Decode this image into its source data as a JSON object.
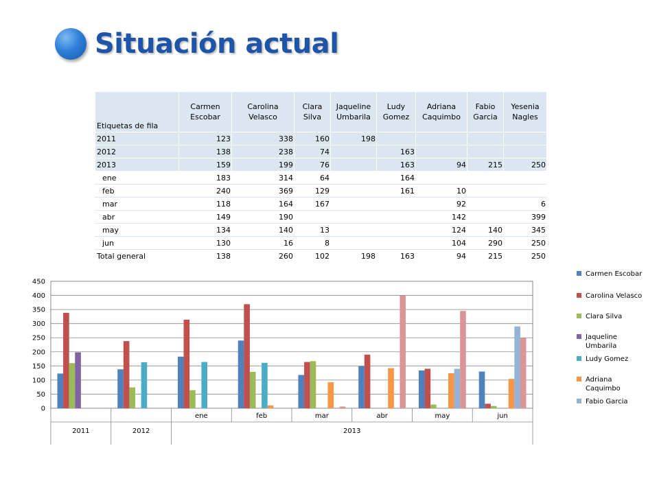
{
  "header": {
    "title": "Situación actual"
  },
  "table": {
    "corner_label": "Etiquetas de fila",
    "columns": [
      "Carmen Escobar",
      "Carolina Velasco",
      "Clara Silva",
      "Jaqueline Umbarila",
      "Ludy Gomez",
      "Adriana Caquimbo",
      "Fabio Garcia",
      "Yesenia Nagles"
    ],
    "rows": [
      {
        "label": "2011",
        "kind": "year",
        "values": [
          "123",
          "338",
          "160",
          "198",
          "",
          "",
          "",
          ""
        ]
      },
      {
        "label": "2012",
        "kind": "year",
        "values": [
          "138",
          "238",
          "74",
          "",
          "163",
          "",
          "",
          ""
        ]
      },
      {
        "label": "2013",
        "kind": "year",
        "values": [
          "159",
          "199",
          "76",
          "",
          "163",
          "94",
          "215",
          "250"
        ]
      },
      {
        "label": "ene",
        "kind": "month",
        "values": [
          "183",
          "314",
          "64",
          "",
          "164",
          "",
          "",
          ""
        ]
      },
      {
        "label": "feb",
        "kind": "month",
        "values": [
          "240",
          "369",
          "129",
          "",
          "161",
          "10",
          "",
          ""
        ]
      },
      {
        "label": "mar",
        "kind": "month",
        "values": [
          "118",
          "164",
          "167",
          "",
          "",
          "92",
          "",
          "6"
        ]
      },
      {
        "label": "abr",
        "kind": "month",
        "values": [
          "149",
          "190",
          "",
          "",
          "",
          "142",
          "",
          "399"
        ]
      },
      {
        "label": "may",
        "kind": "month",
        "values": [
          "134",
          "140",
          "13",
          "",
          "",
          "124",
          "140",
          "345"
        ]
      },
      {
        "label": "jun",
        "kind": "month",
        "values": [
          "130",
          "16",
          "8",
          "",
          "",
          "104",
          "290",
          "250"
        ]
      },
      {
        "label": "Total general",
        "kind": "total",
        "values": [
          "138",
          "260",
          "102",
          "198",
          "163",
          "94",
          "215",
          "250"
        ]
      }
    ]
  },
  "chart_data": {
    "type": "bar",
    "ylim": [
      0,
      450
    ],
    "yticks": [
      0,
      50,
      100,
      150,
      200,
      250,
      300,
      350,
      400,
      450
    ],
    "grid": true,
    "legend_position": "right",
    "categories": [
      {
        "group": "2011",
        "label": ""
      },
      {
        "group": "2012",
        "label": ""
      },
      {
        "group": "2013",
        "label": "ene"
      },
      {
        "group": "2013",
        "label": "feb"
      },
      {
        "group": "2013",
        "label": "mar"
      },
      {
        "group": "2013",
        "label": "abr"
      },
      {
        "group": "2013",
        "label": "may"
      },
      {
        "group": "2013",
        "label": "jun"
      }
    ],
    "groups": [
      "2011",
      "2012",
      "2013"
    ],
    "series": [
      {
        "name": "Carmen Escobar",
        "color": "#4f81bd",
        "values": [
          123,
          138,
          183,
          240,
          118,
          149,
          134,
          130
        ]
      },
      {
        "name": "Carolina Velasco",
        "color": "#c0504d",
        "values": [
          338,
          238,
          314,
          369,
          164,
          190,
          140,
          16
        ]
      },
      {
        "name": "Clara Silva",
        "color": "#9bbb59",
        "values": [
          160,
          74,
          64,
          129,
          167,
          null,
          13,
          8
        ]
      },
      {
        "name": "Jaqueline Umbarila",
        "color": "#8064a2",
        "values": [
          198,
          null,
          null,
          null,
          null,
          null,
          null,
          null
        ]
      },
      {
        "name": "Ludy Gomez",
        "color": "#4bacc6",
        "values": [
          null,
          163,
          164,
          161,
          null,
          null,
          null,
          null
        ]
      },
      {
        "name": "Adriana Caquimbo",
        "color": "#f79646",
        "values": [
          null,
          null,
          null,
          10,
          92,
          142,
          124,
          104
        ]
      },
      {
        "name": "Fabio Garcia",
        "color": "#95b3d7",
        "values": [
          null,
          null,
          null,
          null,
          null,
          null,
          140,
          290
        ]
      },
      {
        "name": "Yesenia Nagles",
        "color": "#d99694",
        "values": [
          null,
          null,
          null,
          null,
          6,
          399,
          345,
          250
        ]
      }
    ],
    "legend_entries": [
      {
        "series": 0,
        "lines": [
          "Carmen Escobar"
        ]
      },
      {
        "series": 1,
        "lines": [
          "Carolina Velasco"
        ]
      },
      {
        "series": 2,
        "lines": [
          "Clara Silva"
        ]
      },
      {
        "series": 3,
        "lines": [
          "Jaqueline",
          "Umbarila"
        ]
      },
      {
        "series": 4,
        "lines": [
          "Ludy Gomez"
        ]
      },
      {
        "series": 5,
        "lines": [
          "Adriana",
          "Caquimbo"
        ]
      },
      {
        "series": 6,
        "lines": [
          "Fabio Garcia"
        ]
      }
    ]
  }
}
